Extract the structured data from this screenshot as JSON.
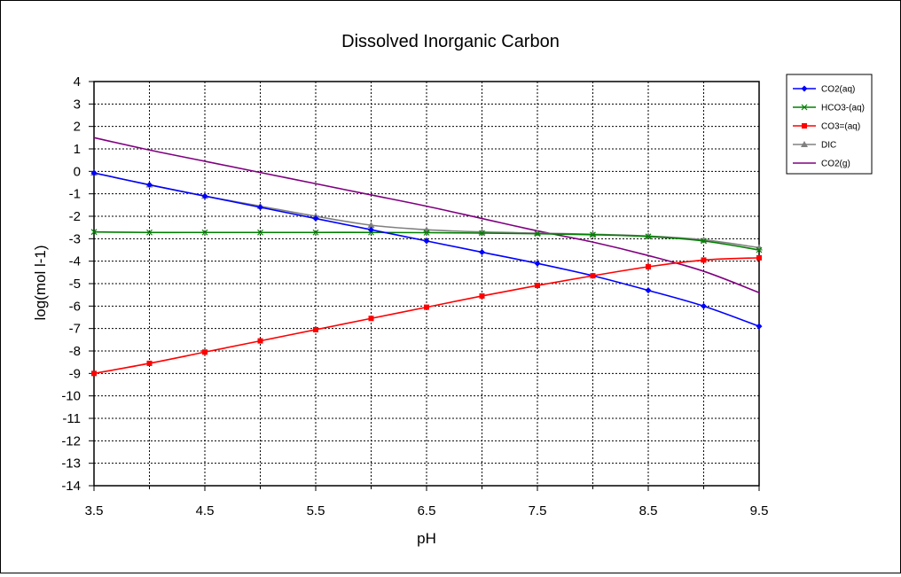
{
  "chart_data": {
    "type": "line",
    "title": "Dissolved Inorganic Carbon",
    "xlabel": "pH",
    "ylabel": "log(mol l-1)",
    "xlim": [
      3.5,
      9.5
    ],
    "ylim": [
      -14,
      4
    ],
    "x_ticks": [
      "3.5",
      "4.5",
      "5.5",
      "6.5",
      "7.5",
      "8.5",
      "9.5"
    ],
    "y_ticks": [
      "4",
      "3",
      "2",
      "1",
      "0",
      "-1",
      "-2",
      "-3",
      "-4",
      "-5",
      "-6",
      "-7",
      "-8",
      "-9",
      "-10",
      "-11",
      "-12",
      "-13",
      "-14"
    ],
    "grid": true,
    "legend_position": "right",
    "series": [
      {
        "name": "CO2(aq)",
        "color": "#0000ff",
        "marker": "diamond",
        "x": [
          3.5,
          4.0,
          4.5,
          5.0,
          5.5,
          6.0,
          6.5,
          7.0,
          7.5,
          8.0,
          8.5,
          9.0,
          9.5
        ],
        "y": [
          -0.07,
          -0.6,
          -1.1,
          -1.6,
          -2.1,
          -2.6,
          -3.1,
          -3.6,
          -4.1,
          -4.65,
          -5.3,
          -6.0,
          -6.9
        ]
      },
      {
        "name": "HCO3-(aq)",
        "color": "#008000",
        "marker": "x",
        "x": [
          3.5,
          4.0,
          4.5,
          5.0,
          5.5,
          6.0,
          6.5,
          7.0,
          7.5,
          8.0,
          8.5,
          9.0,
          9.5
        ],
        "y": [
          -2.7,
          -2.72,
          -2.72,
          -2.72,
          -2.72,
          -2.72,
          -2.73,
          -2.75,
          -2.78,
          -2.82,
          -2.9,
          -3.1,
          -3.5
        ]
      },
      {
        "name": "CO3=(aq)",
        "color": "#ff0000",
        "marker": "square",
        "x": [
          3.5,
          4.0,
          4.5,
          5.0,
          5.5,
          6.0,
          6.5,
          7.0,
          7.5,
          8.0,
          8.5,
          9.0,
          9.5
        ],
        "y": [
          -9.0,
          -8.55,
          -8.05,
          -7.55,
          -7.05,
          -6.55,
          -6.05,
          -5.55,
          -5.08,
          -4.65,
          -4.25,
          -3.95,
          -3.85
        ]
      },
      {
        "name": "DIC",
        "color": "#808080",
        "marker": "triangle",
        "x": [
          3.5,
          4.0,
          4.5,
          5.0,
          5.5,
          6.0,
          6.5,
          7.0,
          7.5,
          8.0,
          8.5,
          9.0,
          9.5
        ],
        "y": [
          -0.07,
          -0.6,
          -1.1,
          -1.55,
          -2.0,
          -2.4,
          -2.6,
          -2.7,
          -2.75,
          -2.8,
          -2.88,
          -3.05,
          -3.4
        ]
      },
      {
        "name": "CO2(g)",
        "color": "#800080",
        "marker": "none",
        "x": [
          3.5,
          4.0,
          4.5,
          5.0,
          5.5,
          6.0,
          6.5,
          7.0,
          7.5,
          8.0,
          8.5,
          9.0,
          9.5
        ],
        "y": [
          1.5,
          0.95,
          0.45,
          -0.05,
          -0.55,
          -1.05,
          -1.55,
          -2.1,
          -2.65,
          -3.15,
          -3.75,
          -4.45,
          -5.4
        ]
      }
    ]
  }
}
